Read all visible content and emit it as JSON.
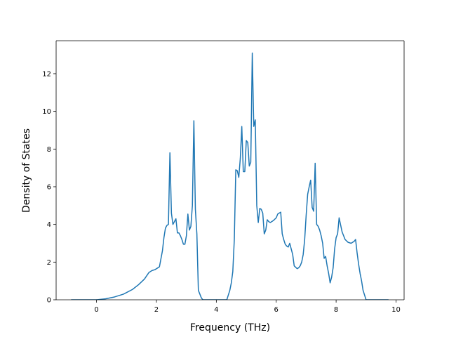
{
  "chart_data": {
    "type": "line",
    "title": "",
    "xlabel": "Frequency (THz)",
    "ylabel": "Density of States",
    "xlim": [
      -1.35,
      10.27
    ],
    "ylim": [
      0,
      13.75
    ],
    "xticks": [
      0,
      2,
      4,
      6,
      8,
      10
    ],
    "yticks": [
      0,
      2,
      4,
      6,
      8,
      10,
      12
    ],
    "grid": false,
    "line_color": "#1f77b4",
    "series": [
      {
        "x": [
          -0.85,
          -0.5,
          0.0,
          0.3,
          0.6,
          0.9,
          1.2,
          1.4,
          1.6,
          1.75,
          1.85,
          1.95,
          2.0,
          2.1,
          2.2,
          2.25,
          2.3,
          2.35,
          2.4,
          2.45,
          2.5,
          2.55,
          2.6,
          2.65,
          2.7,
          2.75,
          2.8,
          2.85,
          2.9,
          2.95,
          3.0,
          3.05,
          3.1,
          3.15,
          3.2,
          3.25,
          3.3,
          3.35,
          3.4,
          3.45,
          3.5,
          3.55,
          3.6,
          3.7,
          4.0,
          4.35,
          4.45,
          4.5,
          4.55,
          4.6,
          4.65,
          4.7,
          4.75,
          4.8,
          4.85,
          4.9,
          4.95,
          5.0,
          5.05,
          5.1,
          5.15,
          5.2,
          5.25,
          5.3,
          5.35,
          5.4,
          5.45,
          5.5,
          5.55,
          5.6,
          5.65,
          5.7,
          5.75,
          5.8,
          5.9,
          6.0,
          6.05,
          6.1,
          6.15,
          6.2,
          6.25,
          6.3,
          6.35,
          6.4,
          6.45,
          6.5,
          6.55,
          6.6,
          6.7,
          6.75,
          6.8,
          6.85,
          6.9,
          6.95,
          7.0,
          7.05,
          7.1,
          7.15,
          7.2,
          7.25,
          7.3,
          7.35,
          7.4,
          7.45,
          7.5,
          7.55,
          7.6,
          7.65,
          7.7,
          7.75,
          7.8,
          7.85,
          7.9,
          7.95,
          8.0,
          8.05,
          8.1,
          8.2,
          8.3,
          8.4,
          8.5,
          8.55,
          8.6,
          8.65,
          8.7,
          8.75,
          8.8,
          8.85,
          8.9,
          9.0,
          9.3,
          9.75
        ],
        "y": [
          0.0,
          0.0,
          0.0,
          0.05,
          0.15,
          0.3,
          0.55,
          0.8,
          1.1,
          1.45,
          1.55,
          1.6,
          1.65,
          1.75,
          2.6,
          3.3,
          3.8,
          3.95,
          4.0,
          7.8,
          4.6,
          4.0,
          4.15,
          4.3,
          3.55,
          3.55,
          3.4,
          3.2,
          2.95,
          2.95,
          3.4,
          4.55,
          3.7,
          3.9,
          5.0,
          9.5,
          4.8,
          3.5,
          0.5,
          0.3,
          0.1,
          0.0,
          0.0,
          0.0,
          0.0,
          0.0,
          0.5,
          0.9,
          1.5,
          3.2,
          6.9,
          6.85,
          6.5,
          7.5,
          9.2,
          6.8,
          6.8,
          8.45,
          8.35,
          7.1,
          7.3,
          13.1,
          9.2,
          9.55,
          5.0,
          4.1,
          4.85,
          4.8,
          4.6,
          3.5,
          3.7,
          4.25,
          4.15,
          4.1,
          4.2,
          4.35,
          4.55,
          4.6,
          4.65,
          3.5,
          3.2,
          2.95,
          2.85,
          2.8,
          3.0,
          2.7,
          2.4,
          1.8,
          1.65,
          1.7,
          1.8,
          2.0,
          2.4,
          3.2,
          4.5,
          5.6,
          6.0,
          6.35,
          4.9,
          4.7,
          7.25,
          4.0,
          3.9,
          3.7,
          3.4,
          3.0,
          2.2,
          2.3,
          1.8,
          1.4,
          0.9,
          1.2,
          1.7,
          2.7,
          3.3,
          3.5,
          4.35,
          3.6,
          3.2,
          3.05,
          3.0,
          3.05,
          3.1,
          3.2,
          2.5,
          1.9,
          1.4,
          1.0,
          0.5,
          0.0,
          0.0,
          0.0
        ]
      }
    ]
  }
}
